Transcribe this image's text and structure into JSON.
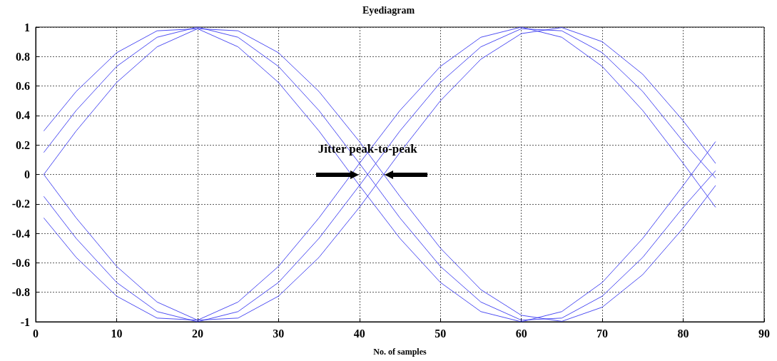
{
  "chart_data": {
    "type": "line",
    "title": "Eyediagram",
    "xlabel": "No. of samples",
    "x": [
      1,
      5,
      10,
      15,
      20,
      25,
      30,
      35,
      40,
      45,
      50,
      55,
      60,
      65,
      70,
      75,
      80,
      84
    ],
    "series": [
      {
        "color": "#3a3af0",
        "values": [
          0.149,
          0.434,
          0.733,
          0.931,
          1,
          0.931,
          0.733,
          0.434,
          0.075,
          -0.295,
          -0.624,
          -0.866,
          -0.989,
          -0.975,
          -0.826,
          -0.563,
          -0.223,
          0.025
        ]
      },
      {
        "color": "#3a3af0",
        "values": [
          0,
          0.295,
          0.624,
          0.866,
          0.989,
          0.975,
          0.826,
          0.563,
          0.223,
          -0.149,
          -0.5,
          -0.782,
          -0.956,
          -0.997,
          -0.901,
          -0.68,
          -0.364,
          -0.075
        ]
      },
      {
        "color": "#3a3af0",
        "values": [
          0.295,
          0.563,
          0.826,
          0.975,
          0.989,
          0.866,
          0.624,
          0.295,
          -0.075,
          -0.434,
          -0.733,
          -0.931,
          -1,
          -0.931,
          -0.733,
          -0.434,
          -0.075,
          0.223
        ]
      },
      {
        "color": "#3a3af0",
        "values": [
          -0.149,
          -0.434,
          -0.733,
          -0.931,
          -1,
          -0.931,
          -0.733,
          -0.434,
          -0.075,
          0.295,
          0.624,
          0.866,
          0.989,
          0.975,
          0.826,
          0.563,
          0.223,
          -0.025
        ]
      },
      {
        "color": "#3a3af0",
        "values": [
          0,
          -0.295,
          -0.624,
          -0.866,
          -0.989,
          -0.975,
          -0.826,
          -0.563,
          -0.223,
          0.149,
          0.5,
          0.782,
          0.956,
          0.997,
          0.901,
          0.68,
          0.364,
          0.075
        ]
      },
      {
        "color": "#3a3af0",
        "values": [
          -0.295,
          -0.563,
          -0.826,
          -0.975,
          -0.989,
          -0.866,
          -0.624,
          -0.295,
          0.075,
          0.434,
          0.733,
          0.931,
          1,
          0.931,
          0.733,
          0.434,
          0.075,
          -0.223
        ]
      }
    ],
    "xlim": [
      0,
      90
    ],
    "xticks": [
      0,
      10,
      20,
      30,
      40,
      50,
      60,
      70,
      80,
      90
    ],
    "ylim": [
      -1,
      1
    ],
    "yticks": [
      -1,
      -0.8,
      -0.6,
      -0.4,
      -0.2,
      0,
      0.2,
      0.4,
      0.6,
      0.8,
      1
    ],
    "grid": true,
    "marker": "none",
    "line_style": "solid",
    "annotations": [
      {
        "text": "Jitter peak-to-peak",
        "x": 41.5,
        "y": 0
      }
    ]
  }
}
